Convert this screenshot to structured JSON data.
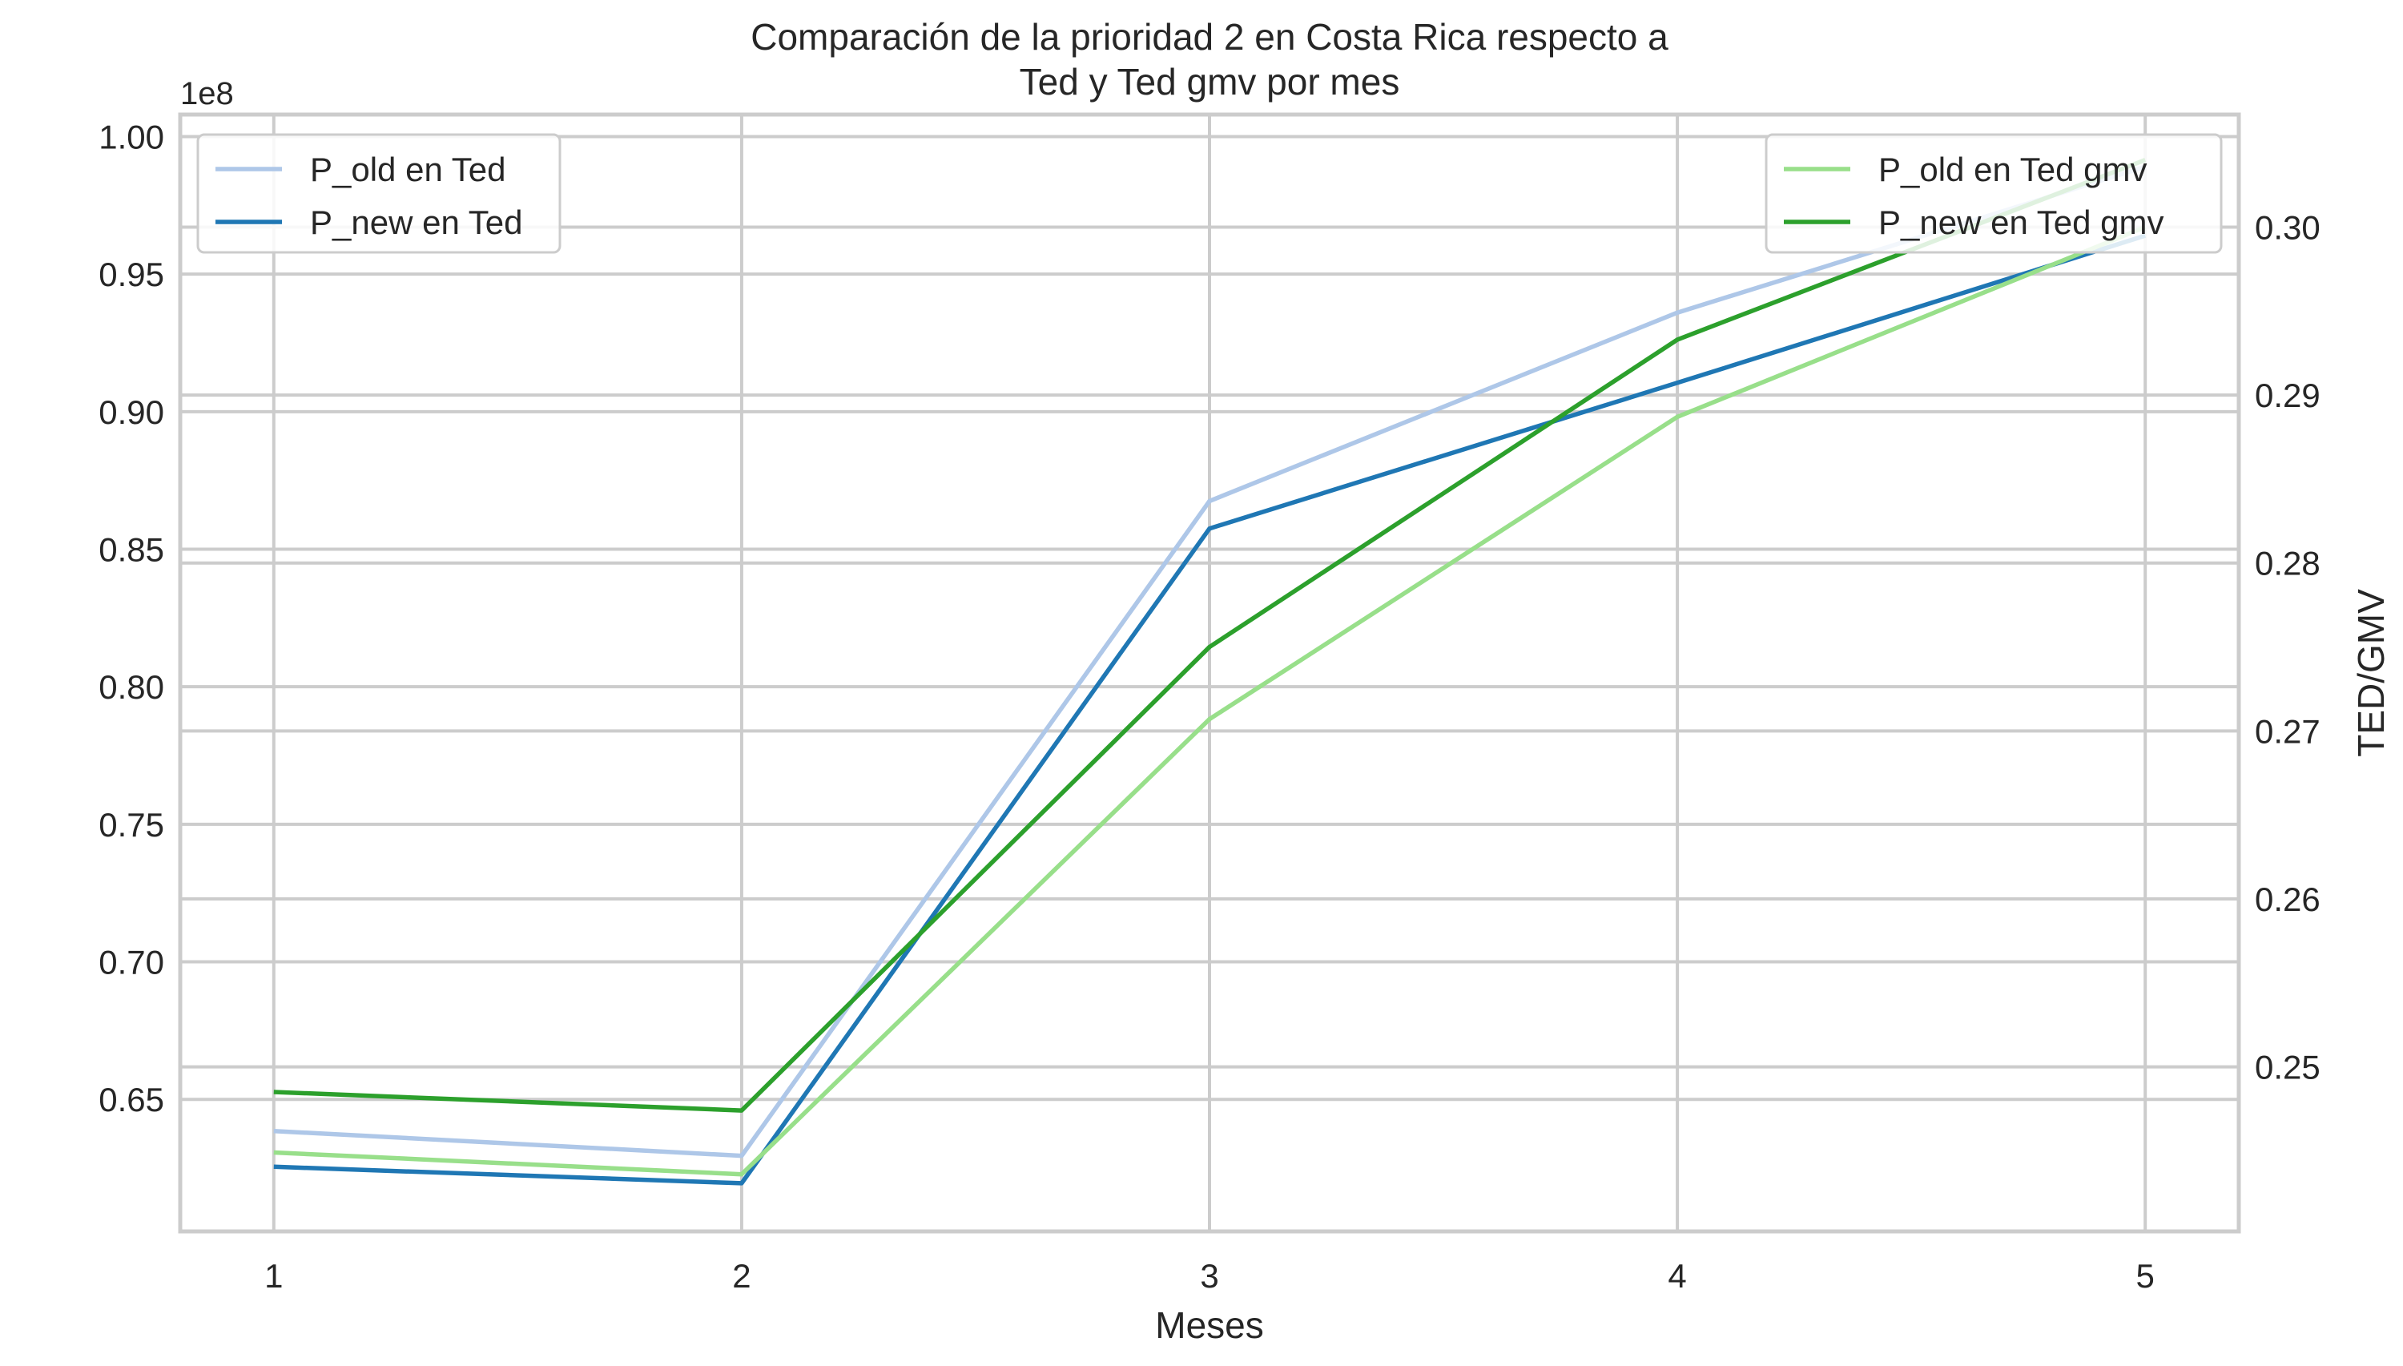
{
  "chart_data": {
    "type": "line",
    "title": "Comparación de la prioridad 2 en Costa Rica respecto a\nTed y Ted gmv por mes",
    "xlabel": "Meses",
    "ylabel_left": "",
    "ylabel_right": "TED/GMV",
    "offset_text_left": "1e8",
    "x": [
      1,
      2,
      3,
      4,
      5
    ],
    "x_ticks": [
      "1",
      "2",
      "3",
      "4",
      "5"
    ],
    "xlim": [
      0.8,
      5.2
    ],
    "left_axis": {
      "ylim": [
        60200000,
        100800000
      ],
      "ticks": [
        0.65,
        0.7,
        0.75,
        0.8,
        0.85,
        0.9,
        0.95,
        1.0
      ],
      "tick_labels": [
        "0.65",
        "0.70",
        "0.75",
        "0.80",
        "0.85",
        "0.90",
        "0.95",
        "1.00"
      ],
      "tick_scale": 100000000
    },
    "right_axis": {
      "ylim": [
        0.2402,
        0.3067
      ],
      "ticks": [
        0.25,
        0.26,
        0.27,
        0.28,
        0.29,
        0.3
      ],
      "tick_labels": [
        "0.25",
        "0.26",
        "0.27",
        "0.28",
        "0.29",
        "0.30"
      ]
    },
    "grid": true,
    "series": [
      {
        "name": "P_old en Ted",
        "axis": "left",
        "color": "#aec7e8",
        "values": [
          63850000,
          62950000,
          86750000,
          93600000,
          98900000
        ]
      },
      {
        "name": "P_new en Ted",
        "axis": "left",
        "color": "#1f77b4",
        "values": [
          62550000,
          61950000,
          85750000,
          91050000,
          96400000
        ]
      },
      {
        "name": "P_old en Ted gmv",
        "axis": "right",
        "color": "#98df8a",
        "values": [
          0.2449,
          0.2436,
          0.2707,
          0.2887,
          0.3
        ]
      },
      {
        "name": "P_new en Ted gmv",
        "axis": "right",
        "color": "#2ca02c",
        "values": [
          0.2485,
          0.2474,
          0.275,
          0.2933,
          0.304
        ]
      }
    ],
    "legends": [
      {
        "placement": "upper-left",
        "series": [
          "P_old en Ted",
          "P_new en Ted"
        ]
      },
      {
        "placement": "upper-right",
        "series": [
          "P_old en Ted gmv",
          "P_new en Ted gmv"
        ]
      }
    ]
  }
}
